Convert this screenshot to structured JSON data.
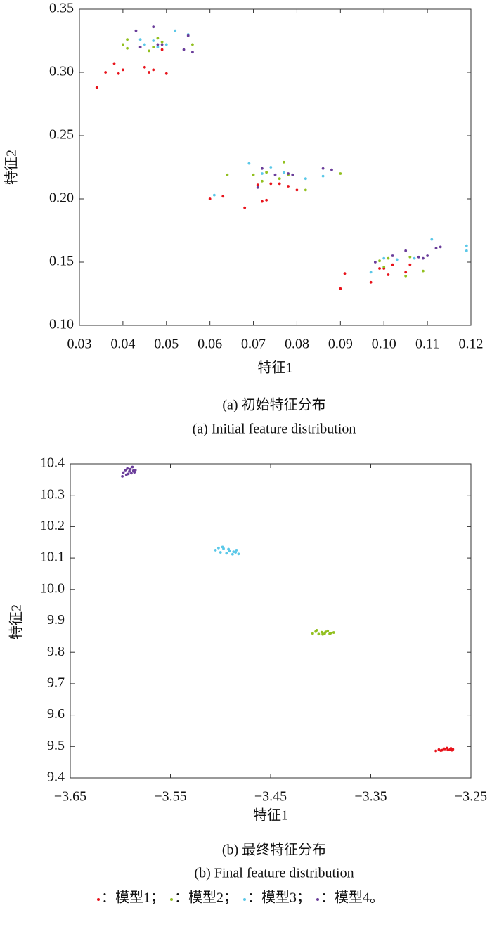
{
  "chart_data": [
    {
      "type": "scatter",
      "title": "(a) 初始特征分布",
      "subtitle": "(a) Initial feature distribution",
      "x_label": "特征1",
      "y_label": "特征2",
      "xlim": [
        0.03,
        0.12
      ],
      "xticks": [
        0.03,
        0.04,
        0.05,
        0.06,
        0.07,
        0.08,
        0.09,
        {
          "value": 0.1,
          "label": "0.10"
        },
        0.11,
        0.12
      ],
      "ylim": [
        0.1,
        0.35
      ],
      "yticks": [
        {
          "value": 0.1,
          "label": "0.10"
        },
        0.15,
        {
          "value": 0.2,
          "label": "0.20"
        },
        0.25,
        {
          "value": 0.3,
          "label": "0.30"
        },
        0.35
      ],
      "series": [
        {
          "color": "#e8131b",
          "x": [
            0.034,
            0.036,
            0.038,
            0.039,
            0.04,
            0.045,
            0.046,
            0.047,
            0.05,
            0.049,
            0.06,
            0.063,
            0.068,
            0.071,
            0.072,
            0.073,
            0.074,
            0.076,
            0.078,
            0.08,
            0.09,
            0.091,
            0.097,
            0.099,
            0.101,
            0.102,
            0.105,
            0.106,
            0.1
          ],
          "values": [
            0.288,
            0.3,
            0.307,
            0.299,
            0.302,
            0.304,
            0.3,
            0.302,
            0.299,
            0.318,
            0.2,
            0.202,
            0.193,
            0.211,
            0.198,
            0.199,
            0.212,
            0.212,
            0.21,
            0.207,
            0.129,
            0.141,
            0.134,
            0.145,
            0.14,
            0.148,
            0.142,
            0.148,
            0.145
          ]
        },
        {
          "color": "#92c020",
          "x": [
            0.04,
            0.041,
            0.041,
            0.046,
            0.047,
            0.048,
            0.049,
            0.056,
            0.064,
            0.07,
            0.072,
            0.073,
            0.076,
            0.077,
            0.078,
            0.082,
            0.09,
            0.099,
            0.1,
            0.101,
            0.105,
            0.106,
            0.109
          ],
          "values": [
            0.322,
            0.319,
            0.326,
            0.317,
            0.32,
            0.327,
            0.324,
            0.322,
            0.219,
            0.219,
            0.214,
            0.221,
            0.216,
            0.229,
            0.219,
            0.207,
            0.22,
            0.151,
            0.146,
            0.153,
            0.139,
            0.154,
            0.143
          ]
        },
        {
          "color": "#5bc8e8",
          "x": [
            0.044,
            0.045,
            0.047,
            0.048,
            0.05,
            0.052,
            0.055,
            0.061,
            0.069,
            0.072,
            0.074,
            0.077,
            0.082,
            0.086,
            0.097,
            0.1,
            0.103,
            0.107,
            0.111,
            0.119,
            0.119
          ],
          "values": [
            0.326,
            0.322,
            0.325,
            0.32,
            0.322,
            0.333,
            0.33,
            0.203,
            0.228,
            0.22,
            0.225,
            0.221,
            0.216,
            0.218,
            0.142,
            0.153,
            0.152,
            0.153,
            0.168,
            0.163,
            0.159
          ]
        },
        {
          "color": "#6a3d9a",
          "x": [
            0.043,
            0.044,
            0.047,
            0.048,
            0.049,
            0.054,
            0.055,
            0.056,
            0.071,
            0.072,
            0.075,
            0.078,
            0.079,
            0.086,
            0.088,
            0.098,
            0.102,
            0.105,
            0.108,
            0.11,
            0.112,
            0.113,
            0.109
          ],
          "values": [
            0.333,
            0.32,
            0.336,
            0.322,
            0.322,
            0.318,
            0.329,
            0.316,
            0.209,
            0.224,
            0.219,
            0.22,
            0.219,
            0.224,
            0.223,
            0.15,
            0.155,
            0.159,
            0.154,
            0.155,
            0.161,
            0.162,
            0.153
          ]
        }
      ]
    },
    {
      "type": "scatter",
      "title": "(b) 最终特征分布",
      "subtitle": "(b) Final feature distribution",
      "x_label": "特征1",
      "y_label": "特征2",
      "xlim": [
        -3.65,
        -3.25
      ],
      "xticks": [
        {
          "value": -3.65,
          "label": "−3.65"
        },
        {
          "value": -3.55,
          "label": "−3.55"
        },
        {
          "value": -3.45,
          "label": "−3.45"
        },
        {
          "value": -3.35,
          "label": "−3.35"
        },
        {
          "value": -3.25,
          "label": "−3.25"
        }
      ],
      "ylim": [
        9.4,
        10.4
      ],
      "yticks": [
        9.4,
        9.5,
        9.6,
        9.7,
        9.8,
        9.9,
        {
          "value": 10,
          "label": "10.0"
        },
        10.1,
        10.2,
        10.3,
        10.4
      ],
      "series": [
        {
          "name": "：模型1；",
          "color": "#e8131b",
          "x": [
            -3.285,
            -3.282,
            -3.279,
            -3.276,
            -3.273,
            -3.27,
            -3.268,
            -3.28,
            -3.274,
            -3.271,
            -3.277,
            -3.269
          ],
          "values": [
            9.486,
            9.49,
            9.488,
            9.492,
            9.489,
            9.494,
            9.491,
            9.487,
            9.495,
            9.49,
            9.493,
            9.488
          ]
        },
        {
          "name": "：模型2；",
          "color": "#92c020",
          "x": [
            -3.408,
            -3.405,
            -3.402,
            -3.399,
            -3.396,
            -3.393,
            -3.39,
            -3.387,
            -3.404,
            -3.398,
            -3.395,
            -3.391
          ],
          "values": [
            9.86,
            9.866,
            9.858,
            9.864,
            9.86,
            9.868,
            9.861,
            9.863,
            9.87,
            9.857,
            9.865,
            9.859
          ]
        },
        {
          "name": "：模型3；",
          "color": "#5bc8e8",
          "x": [
            -3.505,
            -3.5,
            -3.497,
            -3.494,
            -3.491,
            -3.488,
            -3.485,
            -3.482,
            -3.498,
            -3.492,
            -3.487,
            -3.502,
            -3.484
          ],
          "values": [
            10.125,
            10.118,
            10.13,
            10.115,
            10.122,
            10.112,
            10.118,
            10.113,
            10.135,
            10.128,
            10.12,
            10.132,
            10.125
          ]
        },
        {
          "name": "：模型4。",
          "color": "#6a3d9a",
          "x": [
            -3.597,
            -3.595,
            -3.593,
            -3.591,
            -3.589,
            -3.587,
            -3.594,
            -3.59,
            -3.586,
            -3.592,
            -3.588,
            -3.598,
            -3.585
          ],
          "values": [
            10.372,
            10.38,
            10.385,
            10.376,
            10.37,
            10.378,
            10.365,
            10.383,
            10.373,
            10.368,
            10.39,
            10.36,
            10.38
          ]
        }
      ]
    }
  ]
}
